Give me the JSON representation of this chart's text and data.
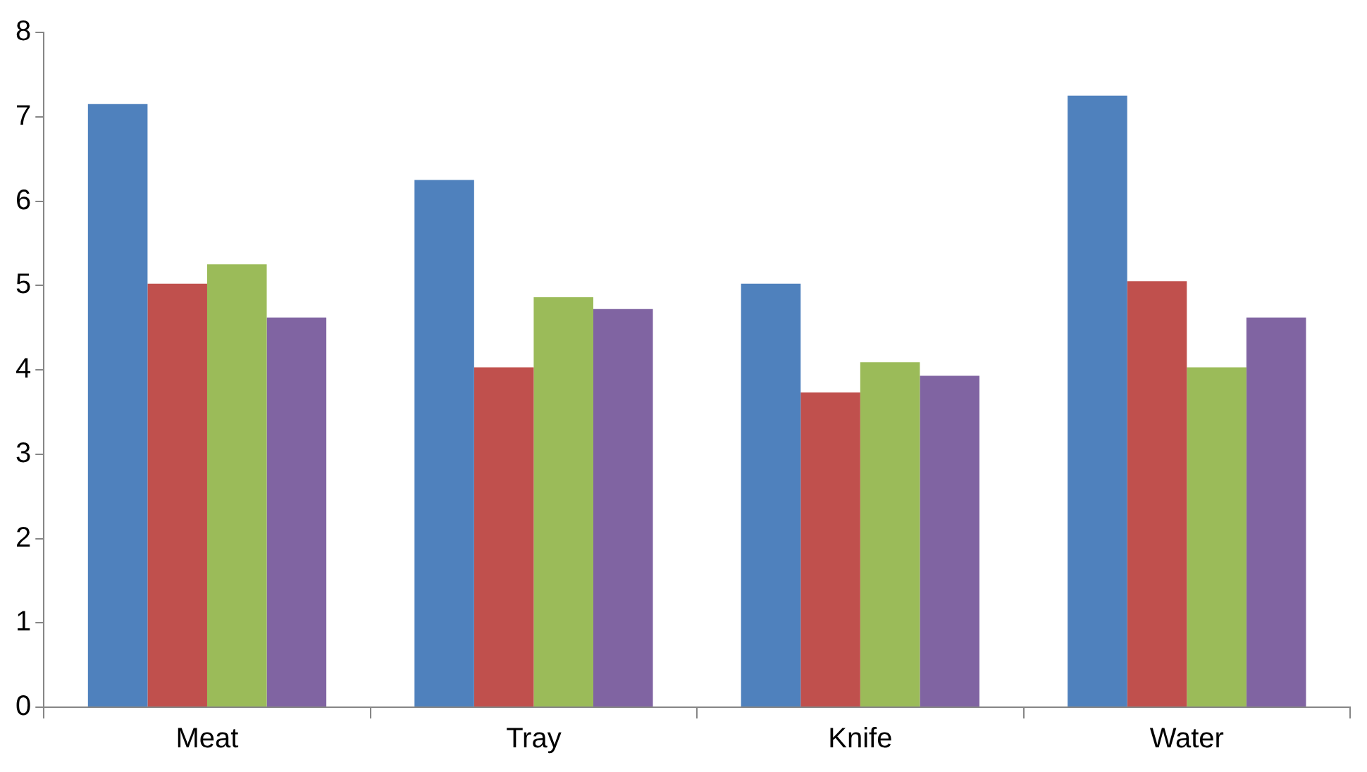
{
  "chart_data": {
    "type": "bar",
    "categories": [
      "Meat",
      "Tray",
      "Knife",
      "Water"
    ],
    "series": [
      {
        "color": "#4f81bd",
        "values": [
          7.15,
          6.25,
          5.02,
          7.25
        ]
      },
      {
        "color": "#c0504d",
        "values": [
          5.02,
          4.03,
          3.73,
          5.05
        ]
      },
      {
        "color": "#9bbb59",
        "values": [
          5.25,
          4.86,
          4.09,
          4.03
        ]
      },
      {
        "color": "#8064a2",
        "values": [
          4.62,
          4.72,
          3.93,
          4.62
        ]
      }
    ],
    "ylim": [
      0,
      8
    ],
    "yticks": [
      0,
      1,
      2,
      3,
      4,
      5,
      6,
      7,
      8
    ]
  }
}
